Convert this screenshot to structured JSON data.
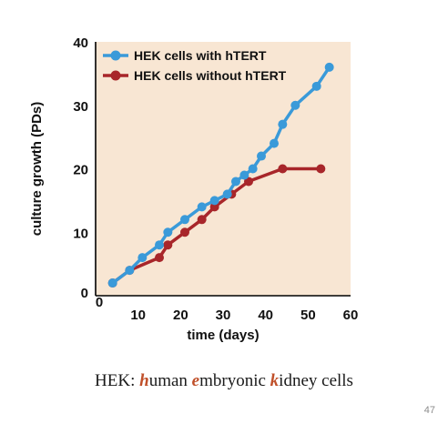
{
  "chart_data": {
    "type": "line",
    "xlabel": "time (days)",
    "ylabel": "culture growth (PDs)",
    "xlim": [
      0,
      60
    ],
    "ylim": [
      0,
      40
    ],
    "xticks": [
      "0",
      "10",
      "20",
      "30",
      "40",
      "50",
      "60"
    ],
    "yticks": [
      "0",
      "10",
      "20",
      "30",
      "40"
    ],
    "grid": false,
    "legend_position": "top-left",
    "plot_background": "#f8e6d3",
    "series": [
      {
        "name": "HEK cells with hTERT",
        "color": "#3a9ad9",
        "x": [
          4,
          8,
          11,
          15,
          17,
          21,
          25,
          28,
          31,
          33,
          35,
          37,
          39,
          42,
          44,
          47,
          52,
          55
        ],
        "y": [
          2,
          4,
          6,
          8,
          10,
          12,
          14,
          15,
          16,
          18,
          19,
          20,
          22,
          24,
          27,
          30,
          33,
          36
        ]
      },
      {
        "name": "HEK cells without hTERT",
        "color": "#a8262a",
        "x": [
          4,
          8,
          15,
          17,
          21,
          25,
          28,
          32,
          36,
          44,
          53
        ],
        "y": [
          2,
          4,
          6,
          8,
          10,
          12,
          14,
          16,
          18,
          20,
          20
        ]
      }
    ]
  },
  "caption": {
    "part1": "HEK: ",
    "h": "h",
    "part2": "uman ",
    "e": "e",
    "part3": "mbryonic ",
    "k": "k",
    "part4": "idney cells"
  },
  "slide_number": "47"
}
